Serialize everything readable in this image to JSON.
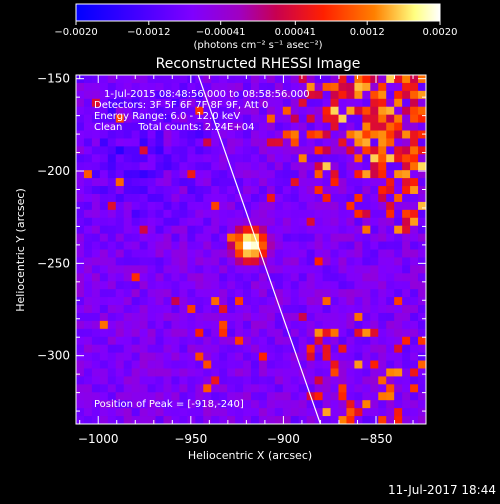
{
  "chart_data": {
    "type": "heatmap",
    "title": "Reconstructed RHESSI Image",
    "xlabel": "Heliocentric X (arcsec)",
    "ylabel": "Heliocentric Y (arcsec)",
    "xlim": [
      -1012,
      -823
    ],
    "ylim": [
      -337,
      -148
    ],
    "xticks": [
      -1000,
      -950,
      -900,
      -850
    ],
    "xtick_labels": [
      "−1000",
      "−950",
      "−900",
      "−850"
    ],
    "yticks": [
      -150,
      -200,
      -250,
      -300
    ],
    "ytick_labels": [
      "−150",
      "−200",
      "−250",
      "−300"
    ],
    "colorbar": {
      "range": [
        -0.002,
        0.002
      ],
      "ticks": [
        "−0.0020",
        "−0.0012",
        "−0.00041",
        "0.00041",
        "0.0012",
        "0.0020"
      ],
      "units": "(photons cm⁻² s⁻¹ asec⁻²)",
      "colors": [
        "#0000ff",
        "#7f00ff",
        "#a000c0",
        "#c80050",
        "#ff2000",
        "#ff8000",
        "#ffff80",
        "#ffffff"
      ]
    },
    "peak": {
      "x": -918,
      "y": -240
    },
    "limb_line": [
      [
        -946,
        -148
      ],
      [
        -880,
        -337
      ]
    ],
    "annotations": [
      "1-Jul-2015 08:48:56.000 to 08:58:56.000",
      "Detectors: 3F 5F 6F 7F 8F 9F, Att 0",
      "Energy Range: 6.0 - 12.0 keV",
      "Clean     Total counts: 2.24E+04",
      "Position of Peak = [-918,-240]"
    ]
  },
  "footer": {
    "timestamp": "11-Jul-2017 18:44"
  }
}
